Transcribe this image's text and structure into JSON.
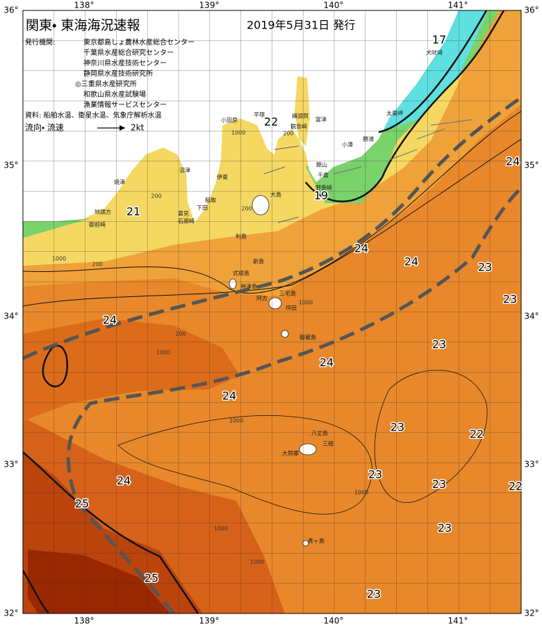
{
  "header": {
    "title": "関東・ 東海海況速報",
    "date": "2019年5月31日 発行"
  },
  "issuers": {
    "label": "発行機関:",
    "agencies": [
      "東京都島しょ農林水産総合センター",
      "千葉県水産総合研究センター",
      "神奈川県水産技術センター",
      "静岡県水産技術研究所",
      "◎三重県水産研究所",
      "和歌山県水産試験場",
      "漁業情報サービスセンター"
    ]
  },
  "sources": "資料: 船舶水温、衛星水温、気象庁解析水温",
  "legend": {
    "label": "流向・ 流速",
    "speed": "2kt"
  },
  "axes": {
    "lon": [
      "138°",
      "139°",
      "140°",
      "141°"
    ],
    "lat": [
      "36°",
      "35°",
      "34°",
      "33°",
      "32°"
    ]
  },
  "temperature_labels": [
    "17",
    "19",
    "21",
    "22",
    "24",
    "24",
    "24",
    "23",
    "23",
    "24",
    "24",
    "23",
    "24",
    "23",
    "22",
    "23",
    "23",
    "22",
    "24",
    "25",
    "25",
    "23",
    "23"
  ],
  "place_names": [
    "犬吠埼",
    "太東岬",
    "勝浦",
    "小湊",
    "館山",
    "千倉",
    "野島崎",
    "富津",
    "横須賀",
    "観音崎",
    "平塚",
    "小田原",
    "伊東",
    "稲取",
    "下田",
    "雲見",
    "石廊崎",
    "沼津",
    "焼津",
    "地頭方",
    "御前崎",
    "大島",
    "利島",
    "新島",
    "式根島",
    "神津島",
    "三宅島",
    "阿古",
    "坪田",
    "御蔵島",
    "八丈島",
    "三根",
    "大賀郷",
    "青ヶ島"
  ],
  "depth_labels": [
    "200",
    "200",
    "200",
    "200",
    "200",
    "1000",
    "1000",
    "1000",
    "1000",
    "1000",
    "1000",
    "1000",
    "1000"
  ]
}
